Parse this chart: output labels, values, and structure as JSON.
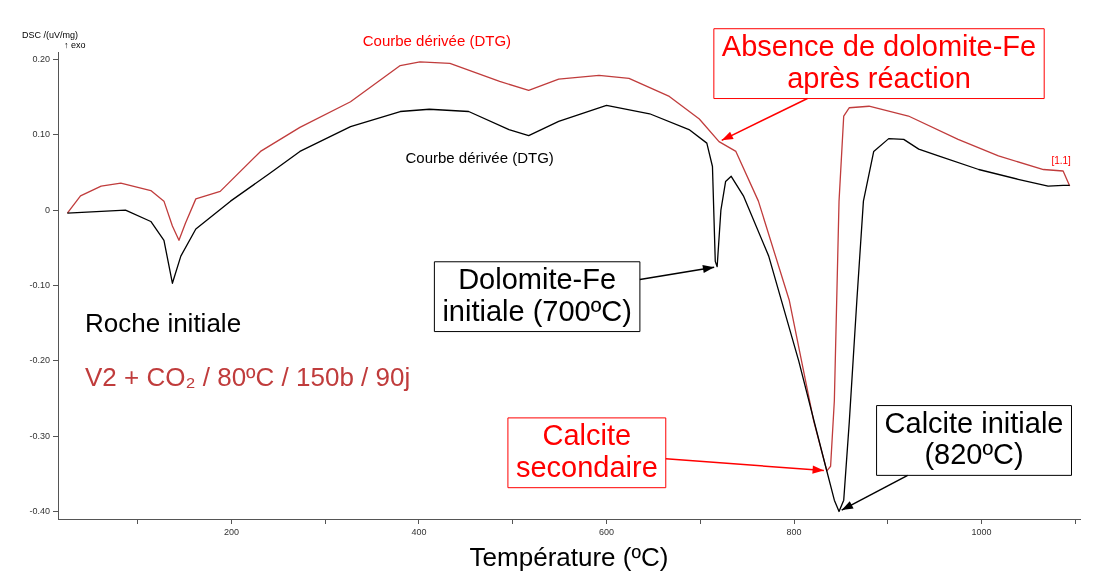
{
  "chart_data": {
    "type": "line",
    "xlabel": "Température (ºC)",
    "ylabel": "DSC /(uV/mg) ↑ exo",
    "xlim": [
      15,
      1105
    ],
    "ylim": [
      -0.41,
      0.21
    ],
    "xticks": [
      {
        "value": 100,
        "label": null
      },
      200,
      {
        "value": 300,
        "label": null
      },
      400,
      {
        "value": 500,
        "label": null
      },
      600,
      {
        "value": 700,
        "label": null
      },
      800,
      {
        "value": 900,
        "label": null
      },
      1000,
      {
        "value": 1100,
        "label": null
      }
    ],
    "yticks": [
      {
        "value": 0.2,
        "label": "0.20"
      },
      {
        "value": 0.1,
        "label": "0.10"
      },
      0,
      {
        "value": -0.1,
        "label": "-0.10"
      },
      {
        "value": -0.2,
        "label": "-0.20"
      },
      {
        "value": -0.3,
        "label": "-0.30"
      },
      {
        "value": -0.4,
        "label": "-0.40"
      }
    ],
    "grid": false,
    "legend": "left",
    "marker": "none",
    "line_style": "solid",
    "series": [
      {
        "name": "Roche initiale",
        "color": "#000000",
        "x": [
          25,
          87,
          114,
          128,
          137,
          146,
          162,
          199,
          241,
          273,
          327,
          380,
          411,
          453,
          496,
          517,
          549,
          600,
          646,
          688,
          707,
          713,
          716,
          718,
          722,
          727,
          733,
          746,
          773,
          805,
          832,
          843,
          848,
          853,
          859,
          867,
          874,
          885,
          901,
          917,
          933,
          954,
          997,
          1039,
          1071,
          1087,
          1094
        ],
        "values": [
          -0.004,
          0,
          -0.015,
          -0.04,
          -0.097,
          -0.061,
          -0.025,
          0.012,
          0.049,
          0.078,
          0.111,
          0.131,
          0.134,
          0.131,
          0.107,
          0.099,
          0.118,
          0.139,
          0.128,
          0.107,
          0.089,
          0.058,
          -0.068,
          -0.075,
          0,
          0.038,
          0.045,
          0.019,
          -0.061,
          -0.2,
          -0.332,
          -0.385,
          -0.4,
          -0.385,
          -0.28,
          -0.12,
          0.012,
          0.078,
          0.095,
          0.094,
          0.081,
          0.072,
          0.054,
          0.041,
          0.032,
          0.033,
          0.033
        ]
      },
      {
        "name": "V2 + CO₂ / 80ºC / 150b / 90j",
        "color": "#c03c3c",
        "x": [
          25,
          39,
          61,
          82,
          114,
          128,
          137,
          144,
          151,
          162,
          188,
          231,
          273,
          327,
          380,
          401,
          433,
          486,
          517,
          549,
          592,
          624,
          667,
          699,
          720,
          738,
          762,
          795,
          821,
          835,
          839,
          843,
          848,
          853,
          859,
          880,
          922,
          975,
          1018,
          1066,
          1087,
          1094
        ],
        "values": [
          -0.004,
          0.019,
          0.032,
          0.036,
          0.026,
          0.012,
          -0.021,
          -0.04,
          -0.017,
          0.015,
          0.025,
          0.078,
          0.11,
          0.144,
          0.192,
          0.197,
          0.195,
          0.171,
          0.159,
          0.174,
          0.179,
          0.175,
          0.151,
          0.121,
          0.091,
          0.078,
          0.012,
          -0.12,
          -0.28,
          -0.346,
          -0.34,
          -0.253,
          0.012,
          0.125,
          0.136,
          0.138,
          0.125,
          0.094,
          0.072,
          0.054,
          0.052,
          0.032
        ]
      }
    ],
    "annotations": [
      {
        "text": "Courbe dérivée (DTG)",
        "x": 401,
        "y": 0.197
      },
      {
        "text": "Courbe dérivée (DTG)",
        "x": 453,
        "y": 0.131
      },
      {
        "text": "Absence de dolomite-Fe\naprès réaction",
        "x": 720,
        "y": 0.091
      },
      {
        "text": "Dolomite-Fe\ninitiale (700ºC)",
        "x": 718,
        "y": -0.075
      },
      {
        "text": "Calcite\nsecondaire",
        "x": 835,
        "y": -0.346
      },
      {
        "text": "Calcite initiale\n(820ºC)",
        "x": 848,
        "y": -0.4
      },
      {
        "text": "[1.1]",
        "x": 1087,
        "y": 0.052
      }
    ]
  }
}
